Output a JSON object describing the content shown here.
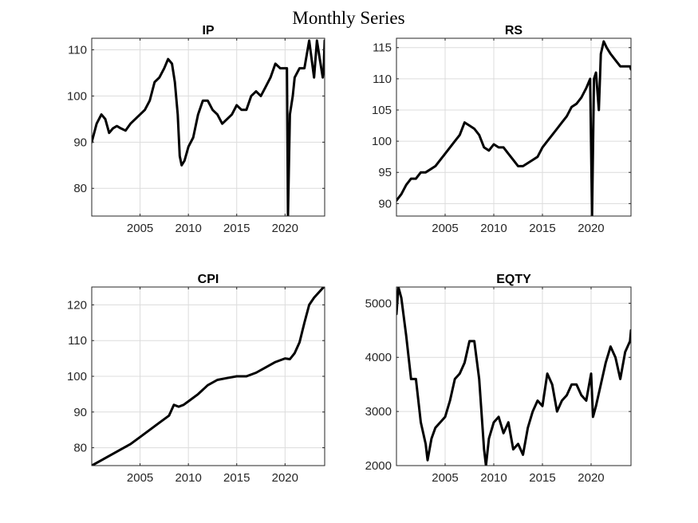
{
  "figure": {
    "title": "Monthly Series"
  },
  "chart_data": [
    {
      "type": "line",
      "title": "IP",
      "xlabel": "",
      "ylabel": "",
      "xlim": [
        2000.0,
        2024.1
      ],
      "ylim": [
        74,
        112.5
      ],
      "xticks": [
        2005,
        2010,
        2015,
        2020
      ],
      "yticks": [
        80,
        90,
        100,
        110
      ],
      "grid": true,
      "series": [
        {
          "x": [
            2000.0,
            2000.5,
            2001.0,
            2001.4,
            2001.8,
            2002.2,
            2002.6,
            2003.0,
            2003.5,
            2004.0,
            2004.5,
            2005.0,
            2005.5,
            2006.0,
            2006.5,
            2007.0,
            2007.5,
            2007.9,
            2008.3,
            2008.6,
            2008.9,
            2009.1,
            2009.3,
            2009.6,
            2010.0,
            2010.5,
            2011.0,
            2011.5,
            2012.0,
            2012.5,
            2013.0,
            2013.5,
            2014.0,
            2014.5,
            2015.0,
            2015.5,
            2016.0,
            2016.5,
            2017.0,
            2017.5,
            2018.0,
            2018.5,
            2019.0,
            2019.5,
            2020.0,
            2020.2,
            2020.3,
            2020.5,
            2020.8,
            2021.0,
            2021.5,
            2022.0,
            2022.5,
            2023.0,
            2023.3,
            2023.6,
            2023.9,
            2024.0,
            2024.1
          ],
          "y": [
            90,
            94,
            96,
            95,
            92,
            93,
            93.5,
            93,
            92.5,
            94,
            95,
            96,
            97,
            99,
            103,
            104,
            106,
            108,
            107,
            103,
            96,
            87,
            85,
            86,
            89,
            91,
            96,
            99,
            99,
            97,
            96,
            94,
            95,
            96,
            98,
            97,
            97,
            100,
            101,
            100,
            102,
            104,
            107,
            106,
            106,
            106,
            74,
            96,
            100,
            104,
            106,
            106,
            112,
            104,
            112,
            108,
            104,
            106,
            112
          ],
          "name": ""
        }
      ]
    },
    {
      "type": "line",
      "title": "RS",
      "xlabel": "",
      "ylabel": "",
      "xlim": [
        2000.0,
        2024.1
      ],
      "ylim": [
        88,
        116.5
      ],
      "xticks": [
        2005,
        2010,
        2015,
        2020
      ],
      "yticks": [
        90,
        95,
        100,
        105,
        110,
        115
      ],
      "grid": true,
      "series": [
        {
          "x": [
            2000.0,
            2000.5,
            2001.0,
            2001.5,
            2002.0,
            2002.5,
            2003.0,
            2003.5,
            2004.0,
            2004.5,
            2005.0,
            2005.5,
            2006.0,
            2006.5,
            2007.0,
            2007.5,
            2008.0,
            2008.5,
            2009.0,
            2009.5,
            2010.0,
            2010.5,
            2011.0,
            2011.5,
            2012.0,
            2012.5,
            2013.0,
            2013.5,
            2014.0,
            2014.5,
            2015.0,
            2015.5,
            2016.0,
            2016.5,
            2017.0,
            2017.5,
            2018.0,
            2018.5,
            2019.0,
            2019.5,
            2019.9,
            2020.1,
            2020.3,
            2020.5,
            2020.8,
            2021.0,
            2021.3,
            2021.6,
            2022.0,
            2022.5,
            2023.0,
            2023.5,
            2024.0,
            2024.1
          ],
          "y": [
            90.5,
            91.5,
            93,
            94,
            94,
            95,
            95,
            95.5,
            96,
            97,
            98,
            99,
            100,
            101,
            103,
            102.5,
            102,
            101,
            99,
            98.5,
            99.5,
            99,
            99,
            98,
            97,
            96,
            96,
            96.5,
            97,
            97.5,
            99,
            100,
            101,
            102,
            103,
            104,
            105.5,
            106,
            107,
            108.5,
            110,
            88,
            110,
            111,
            105,
            114,
            116,
            115,
            114,
            113,
            112,
            112,
            112,
            111.5
          ],
          "name": ""
        }
      ]
    },
    {
      "type": "line",
      "title": "CPI",
      "xlabel": "",
      "ylabel": "",
      "xlim": [
        2000.0,
        2024.1
      ],
      "ylim": [
        75,
        125
      ],
      "xticks": [
        2005,
        2010,
        2015,
        2020
      ],
      "yticks": [
        80,
        90,
        100,
        110,
        120
      ],
      "grid": true,
      "series": [
        {
          "x": [
            2000.0,
            2001.0,
            2002.0,
            2003.0,
            2004.0,
            2005.0,
            2006.0,
            2007.0,
            2008.0,
            2008.5,
            2009.0,
            2009.5,
            2010.0,
            2011.0,
            2012.0,
            2013.0,
            2014.0,
            2015.0,
            2016.0,
            2017.0,
            2018.0,
            2019.0,
            2020.0,
            2020.5,
            2021.0,
            2021.5,
            2022.0,
            2022.5,
            2023.0,
            2023.5,
            2024.0
          ],
          "y": [
            75,
            76.5,
            78,
            79.5,
            81,
            83,
            85,
            87,
            89,
            92,
            91.5,
            92,
            93,
            95,
            97.5,
            99,
            99.5,
            100,
            100,
            101,
            102.5,
            104,
            105,
            104.8,
            106.5,
            109.5,
            115,
            120,
            122,
            123.5,
            125
          ],
          "name": ""
        }
      ]
    },
    {
      "type": "line",
      "title": "EQTY",
      "xlabel": "",
      "ylabel": "",
      "xlim": [
        2000.0,
        2024.1
      ],
      "ylim": [
        2000,
        5300
      ],
      "xticks": [
        2005,
        2010,
        2015,
        2020
      ],
      "yticks": [
        2000,
        3000,
        4000,
        5000
      ],
      "grid": true,
      "series": [
        {
          "x": [
            2000.0,
            2000.2,
            2000.5,
            2001.0,
            2001.5,
            2002.0,
            2002.5,
            2003.0,
            2003.2,
            2003.6,
            2004.0,
            2004.5,
            2005.0,
            2005.5,
            2006.0,
            2006.5,
            2007.0,
            2007.5,
            2008.0,
            2008.5,
            2009.0,
            2009.2,
            2009.5,
            2010.0,
            2010.5,
            2011.0,
            2011.5,
            2012.0,
            2012.5,
            2013.0,
            2013.5,
            2014.0,
            2014.5,
            2015.0,
            2015.5,
            2016.0,
            2016.5,
            2017.0,
            2017.5,
            2018.0,
            2018.5,
            2019.0,
            2019.5,
            2020.0,
            2020.2,
            2020.5,
            2021.0,
            2021.5,
            2022.0,
            2022.5,
            2023.0,
            2023.5,
            2024.0,
            2024.1
          ],
          "y": [
            4800,
            5300,
            5100,
            4400,
            3600,
            3600,
            2800,
            2400,
            2100,
            2500,
            2700,
            2800,
            2900,
            3200,
            3600,
            3700,
            3900,
            4300,
            4300,
            3600,
            2300,
            2000,
            2500,
            2800,
            2900,
            2600,
            2800,
            2300,
            2400,
            2200,
            2700,
            3000,
            3200,
            3100,
            3700,
            3500,
            3000,
            3200,
            3300,
            3500,
            3500,
            3300,
            3200,
            3700,
            2900,
            3100,
            3500,
            3900,
            4200,
            4000,
            3600,
            4100,
            4300,
            4500
          ],
          "name": ""
        }
      ]
    }
  ]
}
